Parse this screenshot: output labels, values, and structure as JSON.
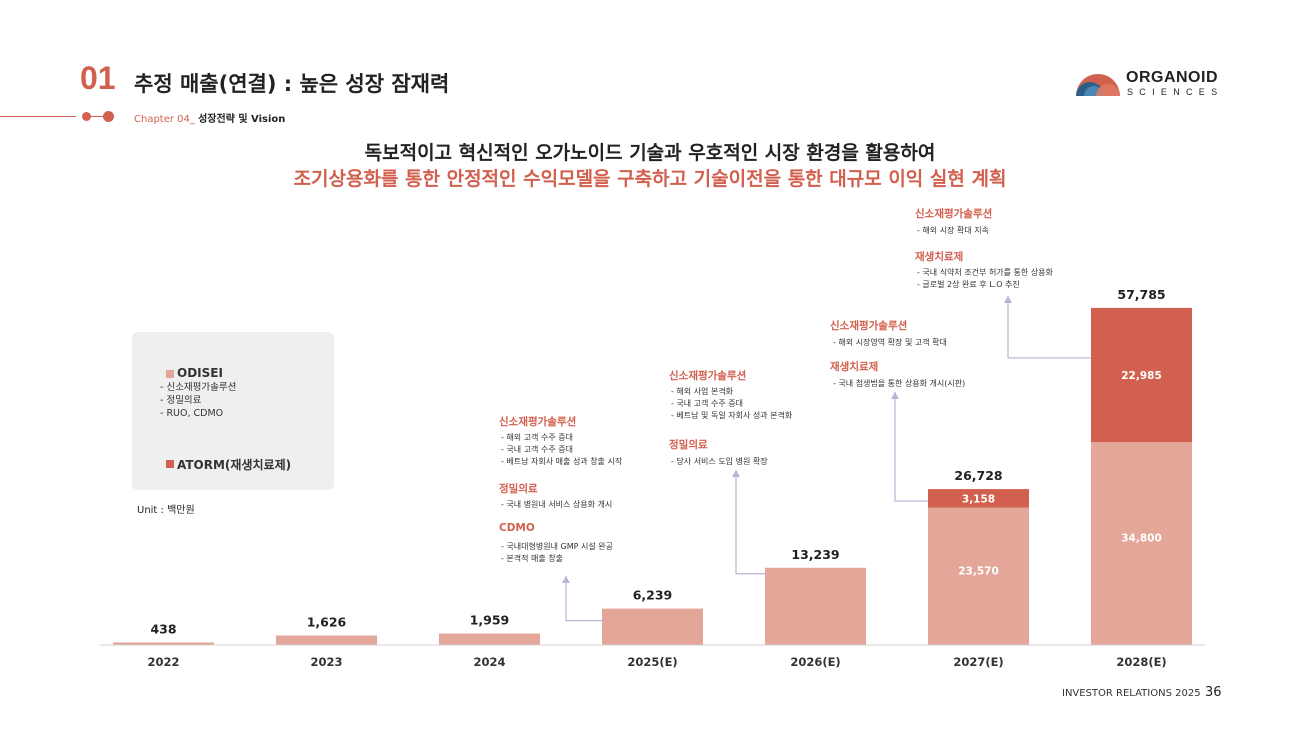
{
  "header": {
    "section_number": "01",
    "title": "추정 매출(연결) : 높은 성장 잠재력",
    "chapter_prefix": "Chapter 04_",
    "chapter_name": "성장전략 및 Vision"
  },
  "logo": {
    "line1": "ORGANOID",
    "line2": "SCIENCES"
  },
  "headline": {
    "line1": "독보적이고 혁신적인 오가노이드 기술과 우호적인 시장 환경을 활용하여",
    "line2": "조기상용화를 통한 안정적인 수익모델을 구축하고 기술이전을 통한  대규모 이익 실현 계획"
  },
  "legend": {
    "odisei": {
      "name": "ODISEI",
      "items": [
        "- 신소재평가솔루션",
        "- 정밀의료",
        "- RUO, CDMO"
      ]
    },
    "atorm": {
      "name": "ATORM(재생치료제)"
    }
  },
  "unit_label": "Unit : 백만원",
  "colors": {
    "odisei": "#e5a69a",
    "atorm": "#d2604f",
    "accent": "#d2604f",
    "arrow": "#b9b3d6",
    "axis": "#d0d0d0"
  },
  "chart_data": {
    "type": "bar",
    "stacked": true,
    "categories": [
      "2022",
      "2023",
      "2024",
      "2025(E)",
      "2026(E)",
      "2027(E)",
      "2028(E)"
    ],
    "series": [
      {
        "name": "ODISEI",
        "values": [
          438,
          1626,
          1959,
          6239,
          13239,
          23570,
          34800
        ]
      },
      {
        "name": "ATORM(재생치료제)",
        "values": [
          0,
          0,
          0,
          0,
          0,
          3158,
          22985
        ]
      }
    ],
    "totals": [
      "438",
      "1,626",
      "1,959",
      "6,239",
      "13,239",
      "26,728",
      "57,785"
    ],
    "segment_labels": {
      "odisei": [
        "",
        "",
        "",
        "",
        "",
        "23,570",
        "34,800"
      ],
      "atorm": [
        "",
        "",
        "",
        "",
        "",
        "3,158",
        "22,985"
      ]
    },
    "ylim": [
      0,
      60000
    ],
    "grid": false
  },
  "annotations": {
    "y2025": {
      "groups": [
        {
          "title": "신소재평가솔루션",
          "lines": [
            "- 해외 고객 수주 증대",
            "- 국내 고객 수주 증대",
            "- 베트남 자회사 매출 성과 창출 시작"
          ]
        },
        {
          "title": "정밀의료",
          "lines": [
            "- 국내 병원내 서비스 상용화 개시"
          ]
        },
        {
          "title": "CDMO",
          "lines": [
            "- 국내대형병원내 GMP 시설 완공",
            "- 본격적 매출 창출"
          ]
        }
      ]
    },
    "y2026": {
      "groups": [
        {
          "title": "신소재평가솔루션",
          "lines": [
            "- 해외 사업 본격화",
            "- 국내 고객 수주 증대",
            "- 베트남 및 독일 자회사 성과 본격화"
          ]
        },
        {
          "title": "정밀의료",
          "lines": [
            "- 당사 서비스 도입 병원 확장"
          ]
        }
      ]
    },
    "y2027": {
      "groups": [
        {
          "title": "신소재평가솔루션",
          "lines": [
            "- 해외 시장영역 확장 및 고객 확대"
          ]
        },
        {
          "title": "재생치료제",
          "lines": [
            "- 국내 첨생법을 통한 상용화 개시(시판)"
          ]
        }
      ]
    },
    "y2028": {
      "groups": [
        {
          "title": "신소재평가솔루션",
          "lines": [
            "- 해외 시장 확대 지속"
          ]
        },
        {
          "title": "재생치료제",
          "lines": [
            "- 국내 식약처 조건부 허가를 통한 상용화",
            "- 글로벌 2상 완료 후 L.O 추진"
          ]
        }
      ]
    }
  },
  "footer": {
    "label": "INVESTOR RELATIONS 2025",
    "page": "36"
  }
}
